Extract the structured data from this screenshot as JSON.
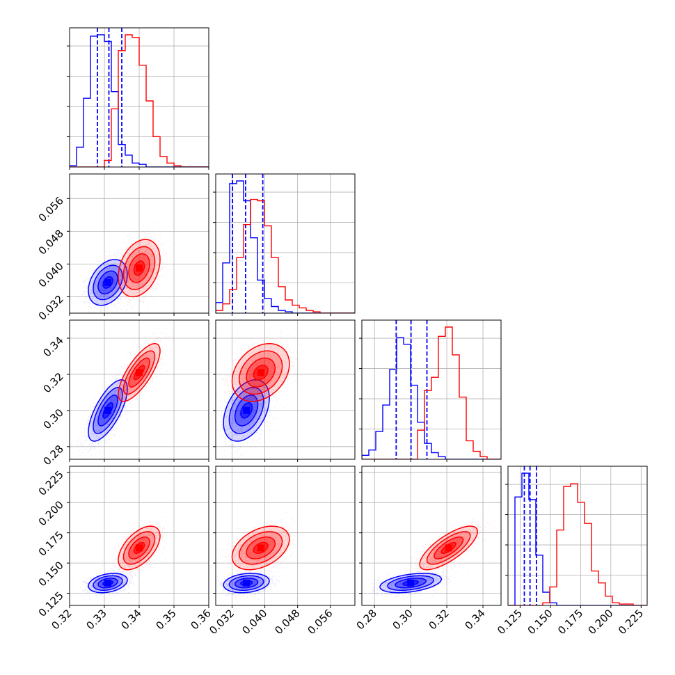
{
  "chart_data": {
    "type": "corner",
    "n_params": 4,
    "series": [
      {
        "color": "#0000ff",
        "means": [
          0.331,
          0.0355,
          0.3,
          0.1335
        ],
        "sds": [
          0.0028,
          0.0028,
          0.0085,
          0.004
        ],
        "corr": [
          [
            1,
            0.35,
            0.7,
            0.3
          ],
          [
            0.35,
            1,
            0.4,
            0.2
          ],
          [
            0.7,
            0.4,
            1,
            0.4
          ],
          [
            0.3,
            0.2,
            0.4,
            1
          ]
        ],
        "quantiles": [
          [
            0.328,
            0.3313,
            0.335
          ],
          [
            0.0321,
            0.0353,
            0.0395
          ],
          [
            0.292,
            0.3002,
            0.309
          ],
          [
            0.1285,
            0.1332,
            0.1385
          ]
        ],
        "hist": [
          [
            0.01,
            0.15,
            0.52,
            0.99,
            1.0,
            0.95,
            0.57,
            0.17,
            0.09,
            0.03,
            0.02,
            0.0,
            0.0,
            0.0,
            0.0,
            0.0,
            0.0,
            0.0,
            0.0,
            0.0
          ],
          [
            0.08,
            0.38,
            0.98,
            1.0,
            0.85,
            0.57,
            0.25,
            0.11,
            0.05,
            0.02,
            0.01,
            0.0,
            0.0,
            0.0,
            0.0,
            0.0,
            0.0,
            0.0,
            0.0,
            0.0
          ],
          [
            0.03,
            0.07,
            0.21,
            0.41,
            0.68,
            0.92,
            0.87,
            0.56,
            0.28,
            0.12,
            0.05,
            0.02,
            0.0,
            0.0,
            0.0,
            0.0,
            0.0,
            0.0,
            0.0,
            0.0
          ],
          [
            0.0,
            0.82,
            1.0,
            0.8,
            0.38,
            0.1,
            0.02,
            0.0,
            0.0,
            0.0,
            0.0,
            0.0,
            0.0,
            0.0,
            0.0,
            0.0,
            0.0,
            0.0,
            0.0,
            0.0
          ]
        ]
      },
      {
        "color": "#ff0000",
        "means": [
          0.34,
          0.039,
          0.321,
          0.1625
        ],
        "sds": [
          0.003,
          0.0035,
          0.008,
          0.009
        ],
        "corr": [
          [
            1,
            0.3,
            0.75,
            0.55
          ],
          [
            0.3,
            1,
            0.3,
            0.4
          ],
          [
            0.75,
            0.3,
            1,
            0.75
          ],
          [
            0.55,
            0.4,
            0.75,
            1
          ]
        ],
        "quantiles": [],
        "hist": [
          [
            0.0,
            0.0,
            0.0,
            0.0,
            0.0,
            0.05,
            0.44,
            0.88,
            1.0,
            0.98,
            0.77,
            0.5,
            0.23,
            0.08,
            0.03,
            0.01,
            0.0,
            0.0,
            0.0,
            0.0
          ],
          [
            0.02,
            0.07,
            0.18,
            0.42,
            0.67,
            0.86,
            0.85,
            0.66,
            0.42,
            0.2,
            0.1,
            0.06,
            0.04,
            0.02,
            0.01,
            0.0,
            0.0,
            0.0,
            0.0,
            0.0
          ],
          [
            0.0,
            0.0,
            0.0,
            0.0,
            0.0,
            0.0,
            0.0,
            0.0,
            0.22,
            0.52,
            0.62,
            0.93,
            1.0,
            0.79,
            0.47,
            0.14,
            0.06,
            0.02,
            0.0,
            0.0
          ],
          [
            0.0,
            0.0,
            0.0,
            0.0,
            0.0,
            0.02,
            0.14,
            0.57,
            0.9,
            0.92,
            0.78,
            0.62,
            0.26,
            0.17,
            0.07,
            0.02,
            0.01,
            0.01,
            0.0,
            0.0
          ]
        ]
      }
    ],
    "ranges": [
      [
        0.32,
        0.36
      ],
      [
        0.028,
        0.062
      ],
      [
        0.273,
        0.35
      ],
      [
        0.115,
        0.23
      ]
    ],
    "ticks": [
      [
        0.32,
        0.33,
        0.34,
        0.35,
        0.36
      ],
      [
        0.032,
        0.04,
        0.048,
        0.056
      ],
      [
        0.28,
        0.3,
        0.32,
        0.34
      ],
      [
        0.125,
        0.15,
        0.175,
        0.2,
        0.225
      ]
    ],
    "tick_labels": [
      [
        "0.32",
        "0.33",
        "0.34",
        "0.35",
        "0.36"
      ],
      [
        "0.032",
        "0.040",
        "0.048",
        "0.056"
      ],
      [
        "0.28",
        "0.30",
        "0.32",
        "0.34"
      ],
      [
        "0.125",
        "0.150",
        "0.175",
        "0.200",
        "0.225"
      ]
    ],
    "contour_levels_sigma": [
      0.5,
      1.0,
      1.5,
      2.0
    ],
    "grid": true
  }
}
